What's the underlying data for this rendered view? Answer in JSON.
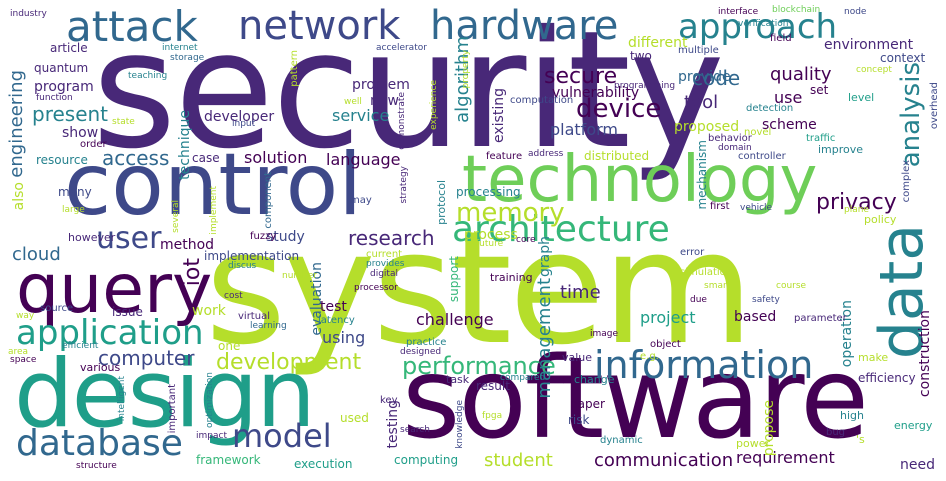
{
  "word_cloud": {
    "palette": [
      "#440154",
      "#482878",
      "#3e4989",
      "#31688e",
      "#26828e",
      "#1f9e89",
      "#35b779",
      "#6ece58",
      "#b5de2b",
      "#fde725"
    ],
    "words": [
      {
        "text": "security",
        "color": "#482878",
        "rotated": false
      },
      {
        "text": "system",
        "color": "#b5de2b",
        "rotated": false
      },
      {
        "text": "software",
        "color": "#440154",
        "rotated": false
      },
      {
        "text": "control",
        "color": "#3e4989",
        "rotated": false
      },
      {
        "text": "design",
        "color": "#1f9e89",
        "rotated": false
      },
      {
        "text": "technology",
        "color": "#6ece58",
        "rotated": false
      },
      {
        "text": "query",
        "color": "#440154",
        "rotated": false
      },
      {
        "text": "data",
        "color": "#26828e",
        "rotated": true
      },
      {
        "text": "network",
        "color": "#3e4989",
        "rotated": false
      },
      {
        "text": "hardware",
        "color": "#31688e",
        "rotated": false
      },
      {
        "text": "attack",
        "color": "#31688e",
        "rotated": false
      },
      {
        "text": "architecture",
        "color": "#35b779",
        "rotated": false
      },
      {
        "text": "information",
        "color": "#31688e",
        "rotated": false
      },
      {
        "text": "application",
        "color": "#1f9e89",
        "rotated": false
      },
      {
        "text": "approach",
        "color": "#26828e",
        "rotated": false
      },
      {
        "text": "database",
        "color": "#31688e",
        "rotated": false
      },
      {
        "text": "memory",
        "color": "#b5de2b",
        "rotated": false
      },
      {
        "text": "user",
        "color": "#3e4989",
        "rotated": false
      },
      {
        "text": "model",
        "color": "#3e4989",
        "rotated": false
      },
      {
        "text": "performance",
        "color": "#35b779",
        "rotated": false
      },
      {
        "text": "device",
        "color": "#440154",
        "rotated": false
      },
      {
        "text": "analysis",
        "color": "#26828e",
        "rotated": true
      },
      {
        "text": "privacy",
        "color": "#440154",
        "rotated": false
      },
      {
        "text": "computer",
        "color": "#3e4989",
        "rotated": false
      },
      {
        "text": "development",
        "color": "#b5de2b",
        "rotated": false
      },
      {
        "text": "secure",
        "color": "#440154",
        "rotated": false
      },
      {
        "text": "code",
        "color": "#31688e",
        "rotated": false
      },
      {
        "text": "research",
        "color": "#482878",
        "rotated": false
      },
      {
        "text": "access",
        "color": "#31688e",
        "rotated": false
      },
      {
        "text": "present",
        "color": "#26828e",
        "rotated": false
      },
      {
        "text": "engineering",
        "color": "#31688e",
        "rotated": true
      },
      {
        "text": "iot",
        "color": "#440154",
        "rotated": true
      },
      {
        "text": "management",
        "color": "#26828e",
        "rotated": true
      },
      {
        "text": "communication",
        "color": "#440154",
        "rotated": false
      },
      {
        "text": "solution",
        "color": "#440154",
        "rotated": false
      },
      {
        "text": "language",
        "color": "#440154",
        "rotated": false
      },
      {
        "text": "cloud",
        "color": "#31688e",
        "rotated": false
      },
      {
        "text": "time",
        "color": "#482878",
        "rotated": false
      },
      {
        "text": "student",
        "color": "#b5de2b",
        "rotated": false
      },
      {
        "text": "requirement",
        "color": "#440154",
        "rotated": false
      },
      {
        "text": "quality",
        "color": "#440154",
        "rotated": false
      },
      {
        "text": "tool",
        "color": "#482878",
        "rotated": false
      },
      {
        "text": "use",
        "color": "#440154",
        "rotated": false
      },
      {
        "text": "provide",
        "color": "#31688e",
        "rotated": false
      },
      {
        "text": "vulnerability",
        "color": "#440154",
        "rotated": false
      },
      {
        "text": "service",
        "color": "#26828e",
        "rotated": false
      },
      {
        "text": "new",
        "color": "#482878",
        "rotated": false
      },
      {
        "text": "problem",
        "color": "#482878",
        "rotated": false
      },
      {
        "text": "platform",
        "color": "#3e4989",
        "rotated": false
      },
      {
        "text": "scheme",
        "color": "#440154",
        "rotated": false
      },
      {
        "text": "proposed",
        "color": "#b5de2b",
        "rotated": false
      },
      {
        "text": "different",
        "color": "#b5de2b",
        "rotated": false
      },
      {
        "text": "environment",
        "color": "#482878",
        "rotated": false
      },
      {
        "text": "algorithm",
        "color": "#26828e",
        "rotated": true
      },
      {
        "text": "existing",
        "color": "#482878",
        "rotated": true
      },
      {
        "text": "challenge",
        "color": "#440154",
        "rotated": false
      },
      {
        "text": "project",
        "color": "#1f9e89",
        "rotated": false
      },
      {
        "text": "based",
        "color": "#440154",
        "rotated": false
      },
      {
        "text": "work",
        "color": "#b5de2b",
        "rotated": false
      },
      {
        "text": "test",
        "color": "#440154",
        "rotated": false
      },
      {
        "text": "using",
        "color": "#3e4989",
        "rotated": false
      },
      {
        "text": "implementation",
        "color": "#3e4989",
        "rotated": false
      },
      {
        "text": "method",
        "color": "#440154",
        "rotated": false
      },
      {
        "text": "study",
        "color": "#3e4989",
        "rotated": false
      },
      {
        "text": "process",
        "color": "#b5de2b",
        "rotated": false
      },
      {
        "text": "processing",
        "color": "#26828e",
        "rotated": false
      },
      {
        "text": "program",
        "color": "#482878",
        "rotated": false
      },
      {
        "text": "show",
        "color": "#482878",
        "rotated": false
      },
      {
        "text": "developer",
        "color": "#482878",
        "rotated": false
      },
      {
        "text": "case",
        "color": "#482878",
        "rotated": false
      },
      {
        "text": "distributed",
        "color": "#b5de2b",
        "rotated": false
      },
      {
        "text": "result",
        "color": "#482878",
        "rotated": false
      },
      {
        "text": "paper",
        "color": "#440154",
        "rotated": false
      },
      {
        "text": "risk",
        "color": "#3e4989",
        "rotated": false
      },
      {
        "text": "computing",
        "color": "#1f9e89",
        "rotated": false
      },
      {
        "text": "framework",
        "color": "#35b779",
        "rotated": false
      },
      {
        "text": "execution",
        "color": "#1f9e89",
        "rotated": false
      },
      {
        "text": "used",
        "color": "#b5de2b",
        "rotated": false
      },
      {
        "text": "issue",
        "color": "#482878",
        "rotated": false
      },
      {
        "text": "quantum",
        "color": "#482878",
        "rotated": false
      },
      {
        "text": "article",
        "color": "#482878",
        "rotated": false
      },
      {
        "text": "resource",
        "color": "#26828e",
        "rotated": false
      },
      {
        "text": "many",
        "color": "#3e4989",
        "rotated": false
      },
      {
        "text": "however",
        "color": "#482878",
        "rotated": false
      },
      {
        "text": "evaluation",
        "color": "#31688e",
        "rotated": true
      },
      {
        "text": "two",
        "color": "#482878",
        "rotated": false
      },
      {
        "text": "technique",
        "color": "#26828e",
        "rotated": true
      },
      {
        "text": "also",
        "color": "#b5de2b",
        "rotated": true
      },
      {
        "text": "graph",
        "color": "#26828e",
        "rotated": true
      },
      {
        "text": "support",
        "color": "#35b779",
        "rotated": true
      },
      {
        "text": "testing",
        "color": "#482878",
        "rotated": true
      },
      {
        "text": "propose",
        "color": "#b5de2b",
        "rotated": true
      },
      {
        "text": "operation",
        "color": "#26828e",
        "rotated": true
      },
      {
        "text": "construction",
        "color": "#440154",
        "rotated": true
      },
      {
        "text": "efficiency",
        "color": "#482878",
        "rotated": false
      },
      {
        "text": "need",
        "color": "#482878",
        "rotated": false
      },
      {
        "text": "fuzzy",
        "color": "#440154",
        "rotated": false
      },
      {
        "text": "one",
        "color": "#b5de2b",
        "rotated": false
      },
      {
        "text": "set",
        "color": "#440154",
        "rotated": false
      },
      {
        "text": "level",
        "color": "#1f9e89",
        "rotated": false
      },
      {
        "text": "context",
        "color": "#3e4989",
        "rotated": false
      },
      {
        "text": "overhead",
        "color": "#3e4989",
        "rotated": true
      },
      {
        "text": "industry",
        "color": "#482878",
        "rotated": false
      },
      {
        "text": "internet",
        "color": "#26828e",
        "rotated": false
      },
      {
        "text": "storage",
        "color": "#31688e",
        "rotated": false
      },
      {
        "text": "accelerator",
        "color": "#3e4989",
        "rotated": false
      },
      {
        "text": "interface",
        "color": "#440154",
        "rotated": false
      },
      {
        "text": "blockchain",
        "color": "#6ece58",
        "rotated": false
      },
      {
        "text": "node",
        "color": "#3e4989",
        "rotated": false
      },
      {
        "text": "verification",
        "color": "#26828e",
        "rotated": false
      },
      {
        "text": "field",
        "color": "#440154",
        "rotated": false
      },
      {
        "text": "programming",
        "color": "#482878",
        "rotated": false
      },
      {
        "text": "concept",
        "color": "#b5de2b",
        "rotated": false
      },
      {
        "text": "teaching",
        "color": "#26828e",
        "rotated": false
      },
      {
        "text": "function",
        "color": "#482878",
        "rotated": false
      },
      {
        "text": "state",
        "color": "#b5de2b",
        "rotated": false
      },
      {
        "text": "input",
        "color": "#3e4989",
        "rotated": false
      },
      {
        "text": "well",
        "color": "#b5de2b",
        "rotated": false
      },
      {
        "text": "demonstrate",
        "color": "#482878",
        "rotated": true
      },
      {
        "text": "experience",
        "color": "#b5de2b",
        "rotated": true
      },
      {
        "text": "property",
        "color": "#b5de2b",
        "rotated": true
      },
      {
        "text": "computation",
        "color": "#3e4989",
        "rotated": false
      },
      {
        "text": "detection",
        "color": "#26828e",
        "rotated": false
      },
      {
        "text": "novel",
        "color": "#b5de2b",
        "rotated": false
      },
      {
        "text": "behavior",
        "color": "#482878",
        "rotated": false
      },
      {
        "text": "domain",
        "color": "#482878",
        "rotated": false
      },
      {
        "text": "traffic",
        "color": "#1f9e89",
        "rotated": false
      },
      {
        "text": "improve",
        "color": "#26828e",
        "rotated": false
      },
      {
        "text": "controller",
        "color": "#3e4989",
        "rotated": false
      },
      {
        "text": "address",
        "color": "#482878",
        "rotated": false
      },
      {
        "text": "feature",
        "color": "#440154",
        "rotated": false
      },
      {
        "text": "complex",
        "color": "#3e4989",
        "rotated": true
      },
      {
        "text": "policy",
        "color": "#b5de2b",
        "rotated": false
      },
      {
        "text": "order",
        "color": "#440154",
        "rotated": false
      },
      {
        "text": "pattern",
        "color": "#b5de2b",
        "rotated": true
      },
      {
        "text": "mechanism",
        "color": "#26828e",
        "rotated": true
      },
      {
        "text": "first",
        "color": "#440154",
        "rotated": false
      },
      {
        "text": "vehicle",
        "color": "#3e4989",
        "rotated": false
      },
      {
        "text": "plane",
        "color": "#b5de2b",
        "rotated": false
      },
      {
        "text": "large",
        "color": "#b5de2b",
        "rotated": false
      },
      {
        "text": "several",
        "color": "#b5de2b",
        "rotated": true
      },
      {
        "text": "implement",
        "color": "#b5de2b",
        "rotated": true
      },
      {
        "text": "component",
        "color": "#31688e",
        "rotated": true
      },
      {
        "text": "may",
        "color": "#3e4989",
        "rotated": false
      },
      {
        "text": "strategy",
        "color": "#482878",
        "rotated": true
      },
      {
        "text": "protocol",
        "color": "#26828e",
        "rotated": true
      },
      {
        "text": "core",
        "color": "#440154",
        "rotated": false
      },
      {
        "text": "future",
        "color": "#b5de2b",
        "rotated": false
      },
      {
        "text": "error",
        "color": "#3e4989",
        "rotated": false
      },
      {
        "text": "discus",
        "color": "#26828e",
        "rotated": false
      },
      {
        "text": "current",
        "color": "#b5de2b",
        "rotated": false
      },
      {
        "text": "provides",
        "color": "#26828e",
        "rotated": false
      },
      {
        "text": "digital",
        "color": "#482878",
        "rotated": false
      },
      {
        "text": "number",
        "color": "#b5de2b",
        "rotated": false
      },
      {
        "text": "processor",
        "color": "#440154",
        "rotated": false
      },
      {
        "text": "cost",
        "color": "#482878",
        "rotated": false
      },
      {
        "text": "training",
        "color": "#440154",
        "rotated": false
      },
      {
        "text": "simulation",
        "color": "#b5de2b",
        "rotated": false
      },
      {
        "text": "course",
        "color": "#b5de2b",
        "rotated": false
      },
      {
        "text": "smart",
        "color": "#b5de2b",
        "rotated": false
      },
      {
        "text": "due",
        "color": "#440154",
        "rotated": false
      },
      {
        "text": "safety",
        "color": "#3e4989",
        "rotated": false
      },
      {
        "text": "parameter",
        "color": "#482878",
        "rotated": false
      },
      {
        "text": "virtual",
        "color": "#482878",
        "rotated": false
      },
      {
        "text": "learning",
        "color": "#31688e",
        "rotated": false
      },
      {
        "text": "latency",
        "color": "#26828e",
        "rotated": false
      },
      {
        "text": "source",
        "color": "#3e4989",
        "rotated": false
      },
      {
        "text": "way",
        "color": "#b5de2b",
        "rotated": false
      },
      {
        "text": "area",
        "color": "#b5de2b",
        "rotated": false
      },
      {
        "text": "efficient",
        "color": "#26828e",
        "rotated": false
      },
      {
        "text": "space",
        "color": "#440154",
        "rotated": false
      },
      {
        "text": "practice",
        "color": "#26828e",
        "rotated": false
      },
      {
        "text": "designed",
        "color": "#482878",
        "rotated": false
      },
      {
        "text": "object",
        "color": "#440154",
        "rotated": false
      },
      {
        "text": "image",
        "color": "#440154",
        "rotated": false
      },
      {
        "text": "value",
        "color": "#482878",
        "rotated": false
      },
      {
        "text": "e.g.",
        "color": "#b5de2b",
        "rotated": false
      },
      {
        "text": "make",
        "color": "#b5de2b",
        "rotated": false
      },
      {
        "text": "compared",
        "color": "#26828e",
        "rotated": false
      },
      {
        "text": "task",
        "color": "#482878",
        "rotated": false
      },
      {
        "text": "change",
        "color": "#26828e",
        "rotated": false
      },
      {
        "text": "various",
        "color": "#440154",
        "rotated": false
      },
      {
        "text": "intelligent",
        "color": "#26828e",
        "rotated": true
      },
      {
        "text": "optimization",
        "color": "#26828e",
        "rotated": true
      },
      {
        "text": "important",
        "color": "#482878",
        "rotated": true
      },
      {
        "text": "impact",
        "color": "#482878",
        "rotated": false
      },
      {
        "text": "structure",
        "color": "#440154",
        "rotated": false
      },
      {
        "text": "key",
        "color": "#482878",
        "rotated": false
      },
      {
        "text": "search",
        "color": "#482878",
        "rotated": false
      },
      {
        "text": "knowledge",
        "color": "#3e4989",
        "rotated": true
      },
      {
        "text": "fpga",
        "color": "#b5de2b",
        "rotated": false
      },
      {
        "text": "dynamic",
        "color": "#26828e",
        "rotated": false
      },
      {
        "text": "power",
        "color": "#b5de2b",
        "rotated": false
      },
      {
        "text": "high",
        "color": "#26828e",
        "rotated": false
      },
      {
        "text": "energy",
        "color": "#1f9e89",
        "rotated": false
      },
      {
        "text": "bug",
        "color": "#482878",
        "rotated": false
      },
      {
        "text": "'s",
        "color": "#b5de2b",
        "rotated": false
      },
      {
        "text": "multiple",
        "color": "#3e4989",
        "rotated": false
      }
    ]
  }
}
